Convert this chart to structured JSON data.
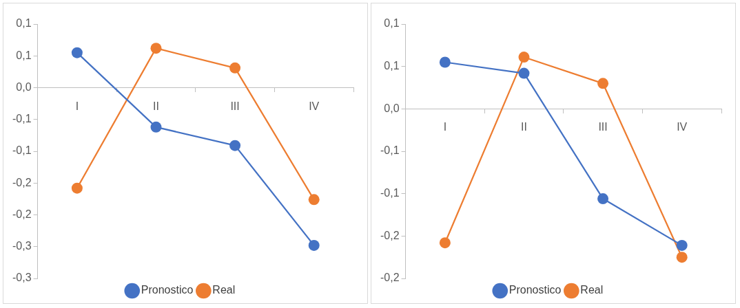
{
  "chart_data": [
    {
      "type": "line",
      "categories": [
        "I",
        "II",
        "III",
        "IV"
      ],
      "series": [
        {
          "name": "Pronostico",
          "color": "#4472c4",
          "values": [
            0.055,
            -0.062,
            -0.091,
            -0.248
          ]
        },
        {
          "name": "Real",
          "color": "#ed7d31",
          "values": [
            -0.158,
            0.062,
            0.031,
            -0.176
          ]
        }
      ],
      "ylim": [
        -0.3,
        0.1
      ],
      "yticks": [
        {
          "value": 0.1,
          "label": "0,1"
        },
        {
          "value": 0.05,
          "label": "0,1"
        },
        {
          "value": 0,
          "label": "0,0"
        },
        {
          "value": -0.05,
          "label": "-0,1"
        },
        {
          "value": -0.1,
          "label": "-0,1"
        },
        {
          "value": -0.15,
          "label": "-0,2"
        },
        {
          "value": -0.2,
          "label": "-0,2"
        },
        {
          "value": -0.25,
          "label": "-0,3"
        },
        {
          "value": -0.3,
          "label": "-0,3"
        }
      ],
      "grid": false,
      "legend": "bottom",
      "marker": "circle",
      "line_style": "solid"
    },
    {
      "type": "line",
      "categories": [
        "I",
        "II",
        "III",
        "IV"
      ],
      "series": [
        {
          "name": "Pronostico",
          "color": "#4472c4",
          "values": [
            0.055,
            0.042,
            -0.106,
            -0.161
          ]
        },
        {
          "name": "Real",
          "color": "#ed7d31",
          "values": [
            -0.158,
            0.061,
            0.03,
            -0.175
          ]
        }
      ],
      "ylim": [
        -0.2,
        0.1
      ],
      "yticks": [
        {
          "value": 0.1,
          "label": "0,1"
        },
        {
          "value": 0.05,
          "label": "0,1"
        },
        {
          "value": 0,
          "label": "0,0"
        },
        {
          "value": -0.05,
          "label": "-0,1"
        },
        {
          "value": -0.1,
          "label": "-0,1"
        },
        {
          "value": -0.15,
          "label": "-0,2"
        },
        {
          "value": -0.2,
          "label": "-0,2"
        }
      ],
      "grid": false,
      "legend": "bottom",
      "marker": "circle",
      "line_style": "solid"
    }
  ]
}
